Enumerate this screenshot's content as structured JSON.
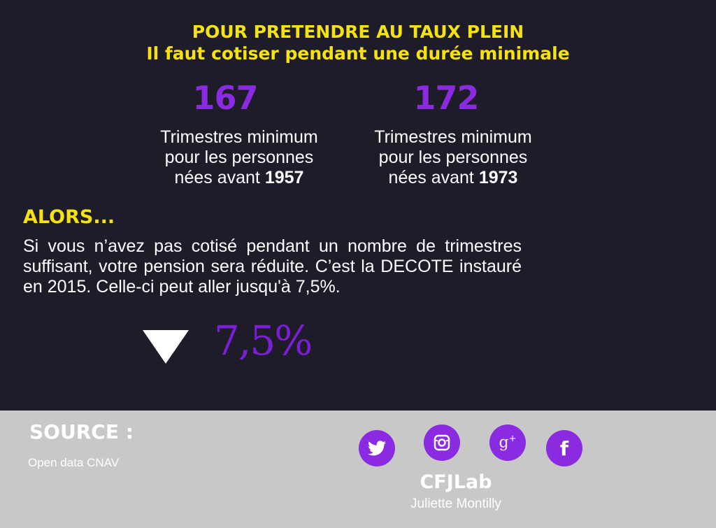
{
  "header": {
    "title_line1": "POUR PRETENDRE AU TAUX PLEIN",
    "title_line2": "Il faut cotiser pendant une durée minimale"
  },
  "stats": [
    {
      "value": "167",
      "desc_line1": "Trimestres minimum",
      "desc_line2": "pour les personnes",
      "desc_line3_prefix": "nées avant ",
      "desc_line3_year": "1957"
    },
    {
      "value": "172",
      "desc_line1": "Trimestres minimum",
      "desc_line2": "pour les personnes",
      "desc_line3_prefix": "nées avant ",
      "desc_line3_year": "1973"
    }
  ],
  "alors": {
    "heading": "ALORS...",
    "paragraph": "Si vous n’avez pas cotisé pendant un nombre de trimestres suffisant, votre pension sera réduite. C’est la DECOTE instauré en 2015. Celle-ci peut aller jusqu'à 7,5%."
  },
  "decote": {
    "percent": "7,5%",
    "icon": "down-triangle-icon"
  },
  "footer": {
    "source_title": "SOURCE :",
    "source_text": "Open data CNAV",
    "brand": "CFJLab",
    "author": "Juliette Montilly",
    "social": [
      {
        "name": "twitter-icon"
      },
      {
        "name": "instagram-icon"
      },
      {
        "name": "google-plus-icon",
        "label": "g+"
      },
      {
        "name": "facebook-icon",
        "label": "f"
      }
    ]
  },
  "colors": {
    "background": "#1e1c29",
    "accent_yellow": "#f5e214",
    "accent_purple": "#8a2be2",
    "footer_bg": "#c8c8c8"
  }
}
